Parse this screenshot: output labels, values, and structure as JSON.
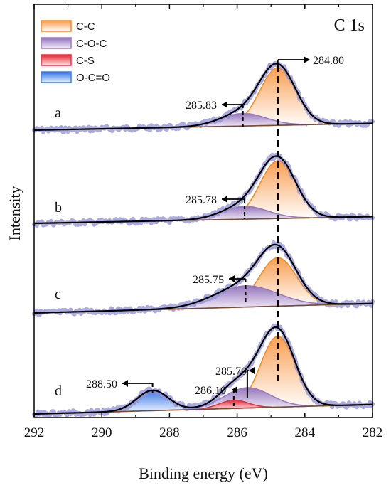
{
  "chart_data": {
    "type": "line",
    "title": "C 1s",
    "xlabel": "Binding energy (eV)",
    "ylabel": "Intensity",
    "xlim": [
      292,
      282
    ],
    "x_reversed": true,
    "xticks": [
      292,
      290,
      288,
      286,
      284,
      282
    ],
    "legend": {
      "placement": "top-left",
      "entries": [
        {
          "name": "C-C",
          "color": "#f28c28"
        },
        {
          "name": "C-O-C",
          "color": "#9a7ac0"
        },
        {
          "name": "C-S",
          "color": "#e8313c"
        },
        {
          "name": "O-C=O",
          "color": "#3d7fe0"
        }
      ]
    },
    "reference_line_x": 284.8,
    "reference_label": "284.80",
    "panels": [
      {
        "label": "a",
        "components": [
          {
            "name": "C-C",
            "center": 284.8,
            "fwhm": 1.25,
            "height": 0.92
          },
          {
            "name": "C-O-C",
            "center": 285.83,
            "fwhm": 1.6,
            "height": 0.2
          }
        ],
        "peak_label": "285.83"
      },
      {
        "label": "b",
        "components": [
          {
            "name": "C-C",
            "center": 284.8,
            "fwhm": 1.25,
            "height": 0.9
          },
          {
            "name": "C-O-C",
            "center": 285.78,
            "fwhm": 1.6,
            "height": 0.2
          }
        ],
        "peak_label": "285.78"
      },
      {
        "label": "c",
        "components": [
          {
            "name": "C-C",
            "center": 284.8,
            "fwhm": 1.3,
            "height": 0.8
          },
          {
            "name": "C-O-C",
            "center": 285.75,
            "fwhm": 2.2,
            "height": 0.35
          }
        ],
        "peak_label": "285.75"
      },
      {
        "label": "d",
        "components": [
          {
            "name": "C-C",
            "center": 284.8,
            "fwhm": 1.2,
            "height": 1.05
          },
          {
            "name": "C-O-C",
            "center": 285.7,
            "fwhm": 1.6,
            "height": 0.3
          },
          {
            "name": "C-S",
            "center": 286.1,
            "fwhm": 1.0,
            "height": 0.12
          },
          {
            "name": "O-C=O",
            "center": 288.5,
            "fwhm": 1.1,
            "height": 0.3
          }
        ],
        "peak_labels": [
          "285.70",
          "286.10",
          "288.50"
        ]
      }
    ]
  }
}
